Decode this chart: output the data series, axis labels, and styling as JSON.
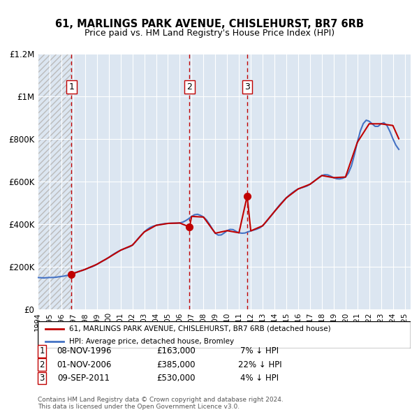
{
  "title": "61, MARLINGS PARK AVENUE, CHISLEHURST, BR7 6RB",
  "subtitle": "Price paid vs. HM Land Registry's House Price Index (HPI)",
  "legend_property": "61, MARLINGS PARK AVENUE, CHISLEHURST, BR7 6RB (detached house)",
  "legend_hpi": "HPI: Average price, detached house, Bromley",
  "footer1": "Contains HM Land Registry data © Crown copyright and database right 2024.",
  "footer2": "This data is licensed under the Open Government Licence v3.0.",
  "sales": [
    {
      "num": 1,
      "date": "08-NOV-1996",
      "price": 163000,
      "pct": "7%",
      "year_x": 1996.86
    },
    {
      "num": 2,
      "date": "01-NOV-2006",
      "price": 385000,
      "pct": "22%",
      "year_x": 2006.83
    },
    {
      "num": 3,
      "date": "09-SEP-2011",
      "price": 530000,
      "pct": "4%",
      "year_x": 2011.69
    }
  ],
  "hpi_line_color": "#4472C4",
  "property_line_color": "#C00000",
  "sale_dot_color": "#C00000",
  "vline_color": "#C00000",
  "hatch_color": "#AAAAAA",
  "bg_color": "#DCE6F1",
  "xmin": 1994.0,
  "xmax": 2025.5,
  "ymin": 0,
  "ymax": 1200000,
  "yticks": [
    0,
    200000,
    400000,
    600000,
    800000,
    1000000,
    1200000
  ],
  "ytick_labels": [
    "£0",
    "£200K",
    "£400K",
    "£600K",
    "£800K",
    "£1M",
    "£1.2M"
  ],
  "xticks": [
    1994,
    1995,
    1996,
    1997,
    1998,
    1999,
    2000,
    2001,
    2002,
    2003,
    2004,
    2005,
    2006,
    2007,
    2008,
    2009,
    2010,
    2011,
    2012,
    2013,
    2014,
    2015,
    2016,
    2017,
    2018,
    2019,
    2020,
    2021,
    2022,
    2023,
    2024,
    2025
  ],
  "hpi_years": [
    1994.0,
    1994.25,
    1994.5,
    1994.75,
    1995.0,
    1995.25,
    1995.5,
    1995.75,
    1996.0,
    1996.25,
    1996.5,
    1996.75,
    1997.0,
    1997.25,
    1997.5,
    1997.75,
    1998.0,
    1998.25,
    1998.5,
    1998.75,
    1999.0,
    1999.25,
    1999.5,
    1999.75,
    2000.0,
    2000.25,
    2000.5,
    2000.75,
    2001.0,
    2001.25,
    2001.5,
    2001.75,
    2002.0,
    2002.25,
    2002.5,
    2002.75,
    2003.0,
    2003.25,
    2003.5,
    2003.75,
    2004.0,
    2004.25,
    2004.5,
    2004.75,
    2005.0,
    2005.25,
    2005.5,
    2005.75,
    2006.0,
    2006.25,
    2006.5,
    2006.75,
    2007.0,
    2007.25,
    2007.5,
    2007.75,
    2008.0,
    2008.25,
    2008.5,
    2008.75,
    2009.0,
    2009.25,
    2009.5,
    2009.75,
    2010.0,
    2010.25,
    2010.5,
    2010.75,
    2011.0,
    2011.25,
    2011.5,
    2011.75,
    2012.0,
    2012.25,
    2012.5,
    2012.75,
    2013.0,
    2013.25,
    2013.5,
    2013.75,
    2014.0,
    2014.25,
    2014.5,
    2014.75,
    2015.0,
    2015.25,
    2015.5,
    2015.75,
    2016.0,
    2016.25,
    2016.5,
    2016.75,
    2017.0,
    2017.25,
    2017.5,
    2017.75,
    2018.0,
    2018.25,
    2018.5,
    2018.75,
    2019.0,
    2019.25,
    2019.5,
    2019.75,
    2020.0,
    2020.25,
    2020.5,
    2020.75,
    2021.0,
    2021.25,
    2021.5,
    2021.75,
    2022.0,
    2022.25,
    2022.5,
    2022.75,
    2023.0,
    2023.25,
    2023.5,
    2023.75,
    2024.0,
    2024.25,
    2024.5
  ],
  "hpi_values": [
    148000,
    147000,
    146000,
    147000,
    148000,
    148000,
    149000,
    151000,
    153000,
    155000,
    158000,
    162000,
    167000,
    172000,
    177000,
    181000,
    186000,
    192000,
    197000,
    202000,
    210000,
    218000,
    226000,
    233000,
    242000,
    252000,
    261000,
    269000,
    276000,
    282000,
    287000,
    292000,
    300000,
    315000,
    332000,
    348000,
    362000,
    374000,
    383000,
    389000,
    393000,
    396000,
    399000,
    401000,
    402000,
    403000,
    403000,
    403000,
    404000,
    408000,
    415000,
    424000,
    435000,
    443000,
    445000,
    440000,
    432000,
    419000,
    399000,
    376000,
    356000,
    347000,
    348000,
    357000,
    368000,
    374000,
    373000,
    365000,
    358000,
    356000,
    357000,
    362000,
    367000,
    371000,
    375000,
    381000,
    391000,
    406000,
    423000,
    440000,
    458000,
    476000,
    493000,
    508000,
    522000,
    535000,
    546000,
    556000,
    564000,
    569000,
    573000,
    578000,
    586000,
    596000,
    607000,
    618000,
    627000,
    631000,
    630000,
    624000,
    617000,
    612000,
    611000,
    614000,
    620000,
    639000,
    672000,
    725000,
    783000,
    836000,
    871000,
    887000,
    882000,
    870000,
    858000,
    858000,
    870000,
    875000,
    862000,
    834000,
    800000,
    770000,
    750000
  ],
  "prop_years": [
    1996.86,
    1996.87,
    1997.0,
    1998.0,
    1999.0,
    2000.0,
    2001.0,
    2002.0,
    2003.0,
    2004.0,
    2005.0,
    2006.0,
    2006.83,
    2007.0,
    2008.0,
    2009.0,
    2010.0,
    2011.0,
    2011.69,
    2012.0,
    2013.0,
    2014.0,
    2015.0,
    2016.0,
    2017.0,
    2018.0,
    2019.0,
    2020.0,
    2021.0,
    2022.0,
    2023.0,
    2024.0,
    2024.5
  ],
  "prop_values": [
    163000,
    163000,
    167000,
    186000,
    210000,
    242000,
    276000,
    300000,
    362000,
    393000,
    402000,
    404000,
    385000,
    435000,
    432000,
    356000,
    368000,
    358000,
    530000,
    367000,
    391000,
    458000,
    522000,
    564000,
    586000,
    627000,
    617000,
    620000,
    783000,
    870000,
    870000,
    862000,
    800000
  ]
}
